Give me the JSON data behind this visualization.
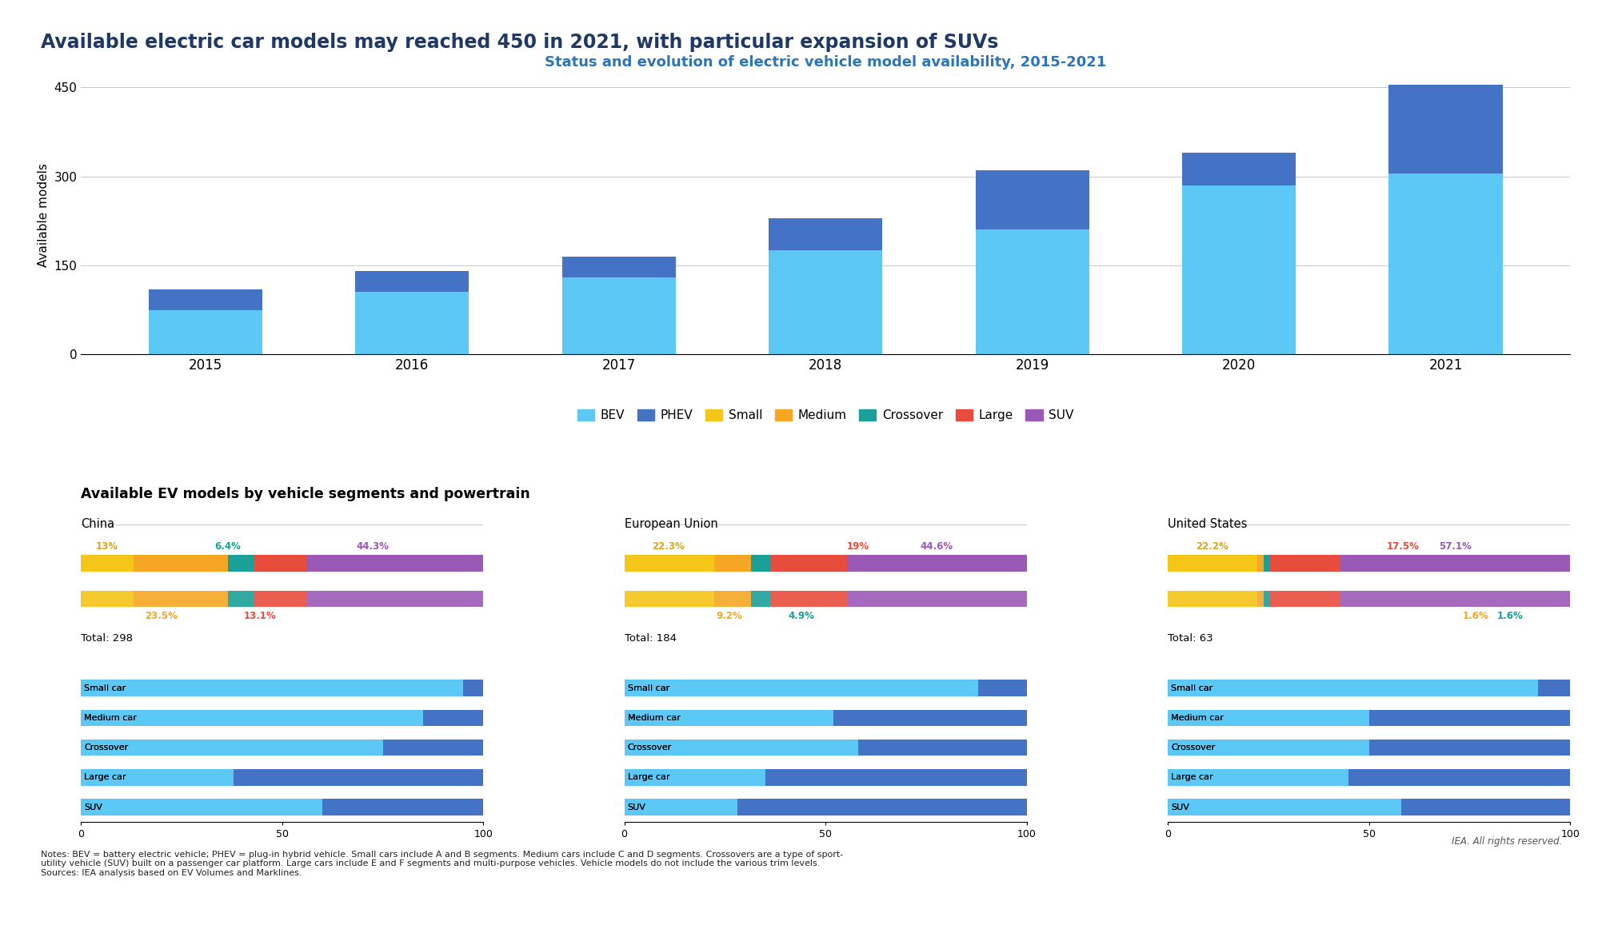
{
  "title": "Available electric car models may reached 450 in 2021, with particular expansion of SUVs",
  "subtitle": "Status and evolution of electric vehicle model availability, 2015-2021",
  "bar_years": [
    2015,
    2016,
    2017,
    2018,
    2019,
    2020,
    2021
  ],
  "bev_values": [
    75,
    105,
    130,
    175,
    210,
    285,
    305
  ],
  "phev_values": [
    35,
    35,
    35,
    55,
    100,
    55,
    150
  ],
  "ylabel": "Available models",
  "yticks": [
    0,
    150,
    300,
    450
  ],
  "ylim": [
    0,
    470
  ],
  "bar_colors": {
    "BEV": "#5BC8F5",
    "PHEV": "#4472C4"
  },
  "legend_colors": {
    "BEV": "#5BC8F5",
    "PHEV": "#4472C4",
    "Small": "#F5C518",
    "Medium": "#F5A623",
    "Crossover": "#1AA098",
    "Large": "#E74C3C",
    "SUV": "#9B59B6"
  },
  "segment_title": "Available EV models by vehicle segments and powertrain",
  "regions": [
    "China",
    "European Union",
    "United States"
  ],
  "region_totals": {
    "China": 298,
    "European Union": 184,
    "United States": 63
  },
  "segment_data": {
    "China": {
      "Small": 13.0,
      "Medium": 23.5,
      "Crossover": 6.4,
      "Large": 13.1,
      "SUV": 44.3
    },
    "European Union": {
      "Small": 22.3,
      "Medium": 9.2,
      "Crossover": 4.9,
      "Large": 19.0,
      "SUV": 44.6
    },
    "United States": {
      "Small": 22.2,
      "Medium": 1.6,
      "Crossover": 1.6,
      "Large": 17.5,
      "SUV": 57.1
    }
  },
  "segment_colors": {
    "Small": "#F5C518",
    "Medium": "#F5A623",
    "Crossover": "#1AA098",
    "Large": "#E74C3C",
    "SUV": "#9B59B6"
  },
  "powertrain_colors": {
    "BEV": "#5BC8F5",
    "PHEV": "#4472C4"
  },
  "hbar_bev": {
    "China": [
      95,
      85,
      75,
      38,
      60
    ],
    "European Union": [
      88,
      52,
      58,
      35,
      28
    ],
    "United States": [
      92,
      50,
      50,
      45,
      58
    ]
  },
  "hbar_phev": {
    "China": [
      5,
      15,
      25,
      62,
      40
    ],
    "European Union": [
      12,
      48,
      42,
      65,
      72
    ],
    "United States": [
      8,
      50,
      50,
      55,
      42
    ]
  },
  "top_labels": {
    "China": [
      [
        "13%",
        6.5,
        "#DAA520"
      ],
      [
        "6.4%",
        36.5,
        "#1AA098"
      ],
      [
        "44.3%",
        72.5,
        "#9B59B6"
      ]
    ],
    "European Union": [
      [
        "22.3%",
        11.0,
        "#DAA520"
      ],
      [
        "19%",
        58.0,
        "#E74C3C"
      ],
      [
        "44.6%",
        77.5,
        "#9B59B6"
      ]
    ],
    "United States": [
      [
        "22.2%",
        11.0,
        "#DAA520"
      ],
      [
        "17.5%",
        58.5,
        "#E74C3C"
      ],
      [
        "57.1%",
        71.5,
        "#9B59B6"
      ]
    ]
  },
  "bot_labels": {
    "China": [
      [
        "23.5%",
        20.0,
        "#F5A623"
      ],
      [
        "13.1%",
        44.5,
        "#E74C3C"
      ]
    ],
    "European Union": [
      [
        "9.2%",
        26.0,
        "#F5A623"
      ],
      [
        "4.9%",
        44.0,
        "#1AA098"
      ]
    ],
    "United States": [
      [
        "1.6%",
        76.5,
        "#F5A623"
      ],
      [
        "1.6%",
        85.0,
        "#1AA098"
      ]
    ]
  },
  "background_color": "#FFFFFF",
  "title_color": "#1F3864",
  "subtitle_color": "#2E75B6"
}
